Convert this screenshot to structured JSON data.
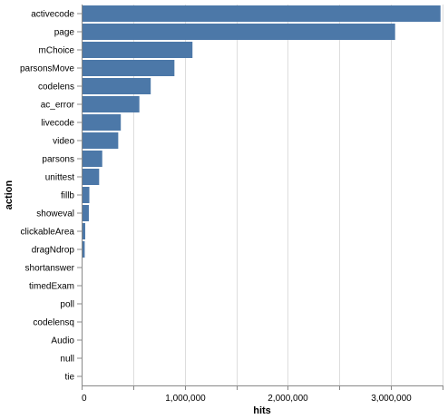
{
  "chart_data": {
    "type": "bar",
    "orientation": "horizontal",
    "xlabel": "hits",
    "ylabel": "action",
    "xlim": [
      0,
      3500000
    ],
    "x_ticks": [
      0,
      500000,
      1000000,
      1500000,
      2000000,
      2500000,
      3000000,
      3500000
    ],
    "x_tick_labels": [
      "0",
      "",
      "1,000,000",
      "",
      "2,000,000",
      "",
      "3,000,000",
      ""
    ],
    "grid": true,
    "bar_color": "#4c78a8",
    "categories": [
      "activecode",
      "page",
      "mChoice",
      "parsonsMove",
      "codelens",
      "ac_error",
      "livecode",
      "video",
      "parsons",
      "unittest",
      "fillb",
      "showeval",
      "clickableArea",
      "dragNdrop",
      "shortanswer",
      "timedExam",
      "poll",
      "codelensq",
      "Audio",
      "null",
      "tie"
    ],
    "values": [
      3480000,
      3040000,
      1075000,
      900000,
      670000,
      560000,
      380000,
      355000,
      200000,
      170000,
      75000,
      70000,
      35000,
      30000,
      4000,
      3000,
      2000,
      1500,
      800,
      300,
      100
    ]
  }
}
